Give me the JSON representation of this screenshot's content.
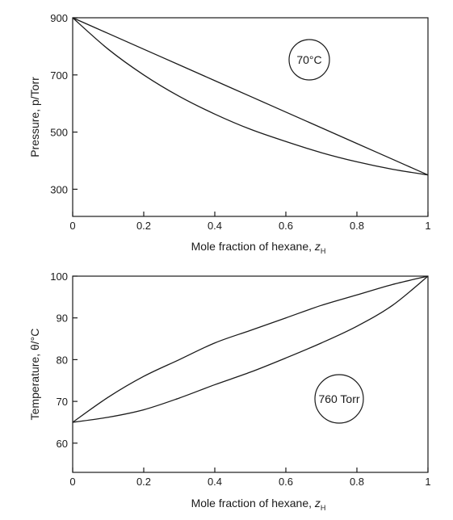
{
  "chart_data": [
    {
      "type": "line",
      "title": "",
      "xlabel": "Mole fraction of hexane, z",
      "xlabel_sub": "H",
      "ylabel": "Pressure, p/Torr",
      "xlim": [
        0,
        1
      ],
      "ylim": [
        205,
        900
      ],
      "xticks": [
        "0",
        "0.2",
        "0.4",
        "0.6",
        "0.8",
        "1"
      ],
      "xtick_values": [
        0,
        0.2,
        0.4,
        0.6,
        0.8,
        1
      ],
      "yticks": [
        "300",
        "500",
        "700",
        "900"
      ],
      "ytick_values": [
        300,
        500,
        700,
        900
      ],
      "grid": false,
      "annotation": "70°C",
      "series": [
        {
          "x": [
            0,
            0.1,
            0.2,
            0.3,
            0.4,
            0.5,
            0.6,
            0.7,
            0.8,
            0.9,
            1.0
          ],
          "y": [
            900,
            845,
            790,
            735,
            680,
            625,
            570,
            515,
            460,
            405,
            350
          ]
        },
        {
          "x": [
            0,
            0.1,
            0.2,
            0.3,
            0.4,
            0.5,
            0.6,
            0.7,
            0.8,
            0.9,
            1.0
          ],
          "y": [
            900,
            790,
            700,
            625,
            563,
            510,
            467,
            428,
            396,
            370,
            350
          ]
        }
      ]
    },
    {
      "type": "line",
      "title": "",
      "xlabel": "Mole fraction of hexane, z",
      "xlabel_sub": "H",
      "ylabel": "Temperature, θ/°C",
      "xlim": [
        0,
        1
      ],
      "ylim": [
        53,
        100
      ],
      "xticks": [
        "0",
        "0.2",
        "0.4",
        "0.6",
        "0.8",
        "1"
      ],
      "xtick_values": [
        0,
        0.2,
        0.4,
        0.6,
        0.8,
        1
      ],
      "yticks": [
        "60",
        "70",
        "80",
        "90",
        "100"
      ],
      "ytick_values": [
        60,
        70,
        80,
        90,
        100
      ],
      "grid": false,
      "annotation": "760 Torr",
      "series": [
        {
          "x": [
            0,
            0.1,
            0.2,
            0.3,
            0.4,
            0.5,
            0.6,
            0.7,
            0.8,
            0.9,
            1.0
          ],
          "y": [
            65,
            71,
            76,
            80,
            84,
            87,
            90,
            93,
            95.5,
            98,
            100
          ]
        },
        {
          "x": [
            0,
            0.1,
            0.2,
            0.3,
            0.4,
            0.5,
            0.6,
            0.7,
            0.8,
            0.9,
            1.0
          ],
          "y": [
            65,
            66.2,
            68,
            70.8,
            74,
            77,
            80.4,
            84,
            88,
            93,
            100
          ]
        }
      ]
    }
  ]
}
